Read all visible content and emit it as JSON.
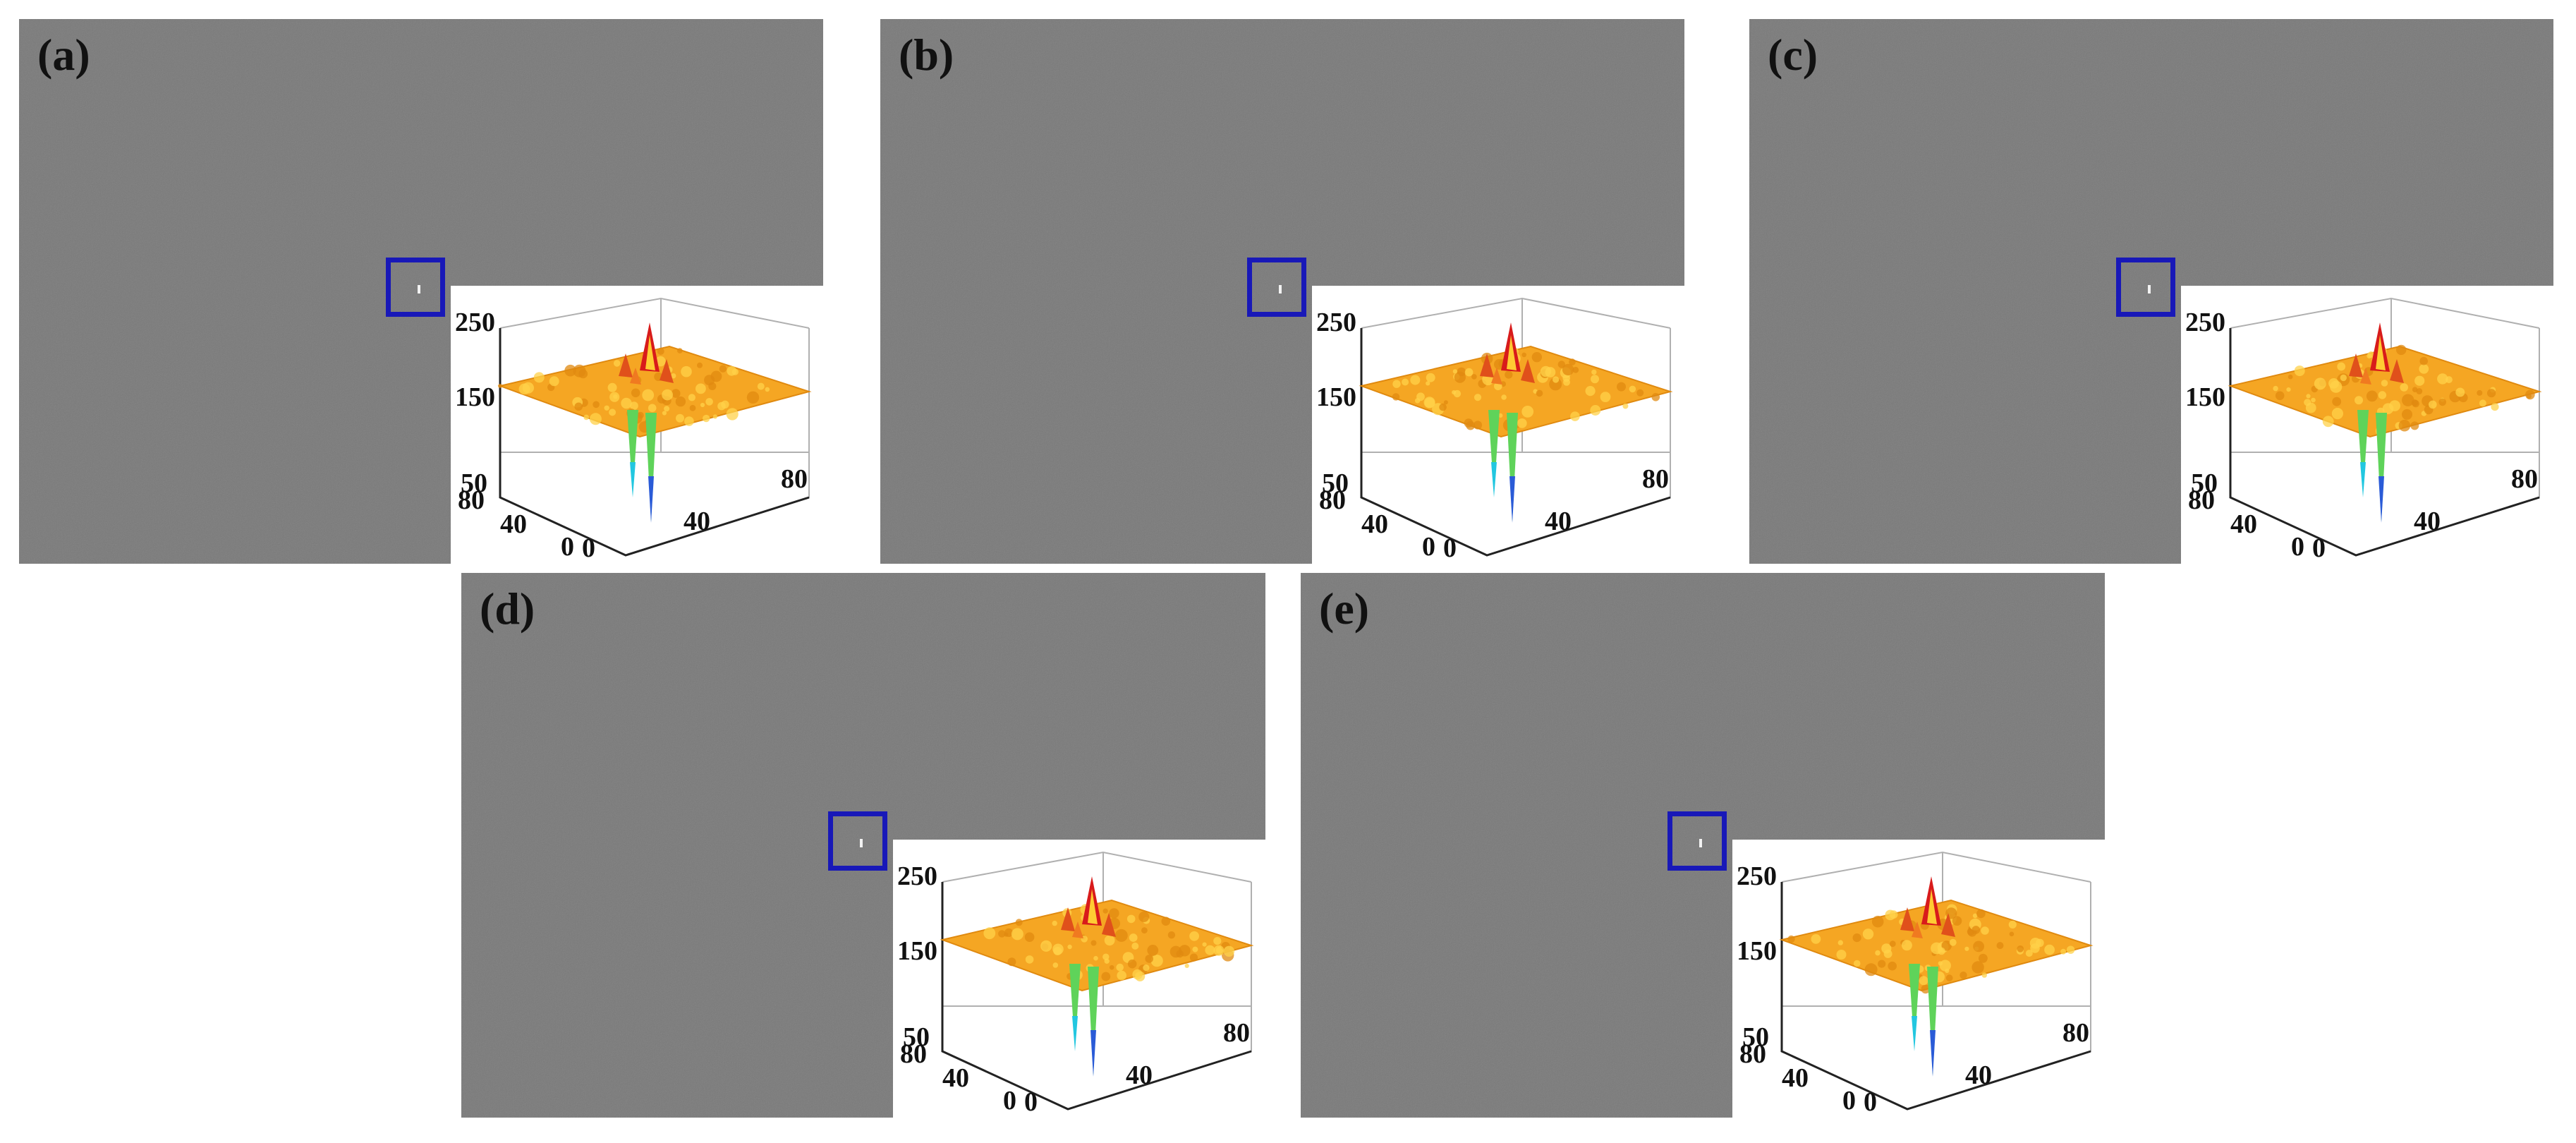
{
  "figure": {
    "panels": [
      {
        "id": "a",
        "label": "(a)"
      },
      {
        "id": "b",
        "label": "(b)"
      },
      {
        "id": "c",
        "label": "(c)"
      },
      {
        "id": "d",
        "label": "(d)"
      },
      {
        "id": "e",
        "label": "(e)"
      }
    ],
    "inset_axes": {
      "z_ticks": [
        "250",
        "150",
        "50"
      ],
      "y_ticks": [
        "80",
        "40",
        "0"
      ],
      "x_ticks": [
        "0",
        "40",
        "80"
      ]
    },
    "colors": {
      "background_gray": "#7a7a7a",
      "roi_box": "#1818b8",
      "surface_orange": "#f5a623",
      "peak_red": "#d81b1b",
      "dip_green": "#5fd35a",
      "dip_blue": "#2a5bd7"
    }
  }
}
